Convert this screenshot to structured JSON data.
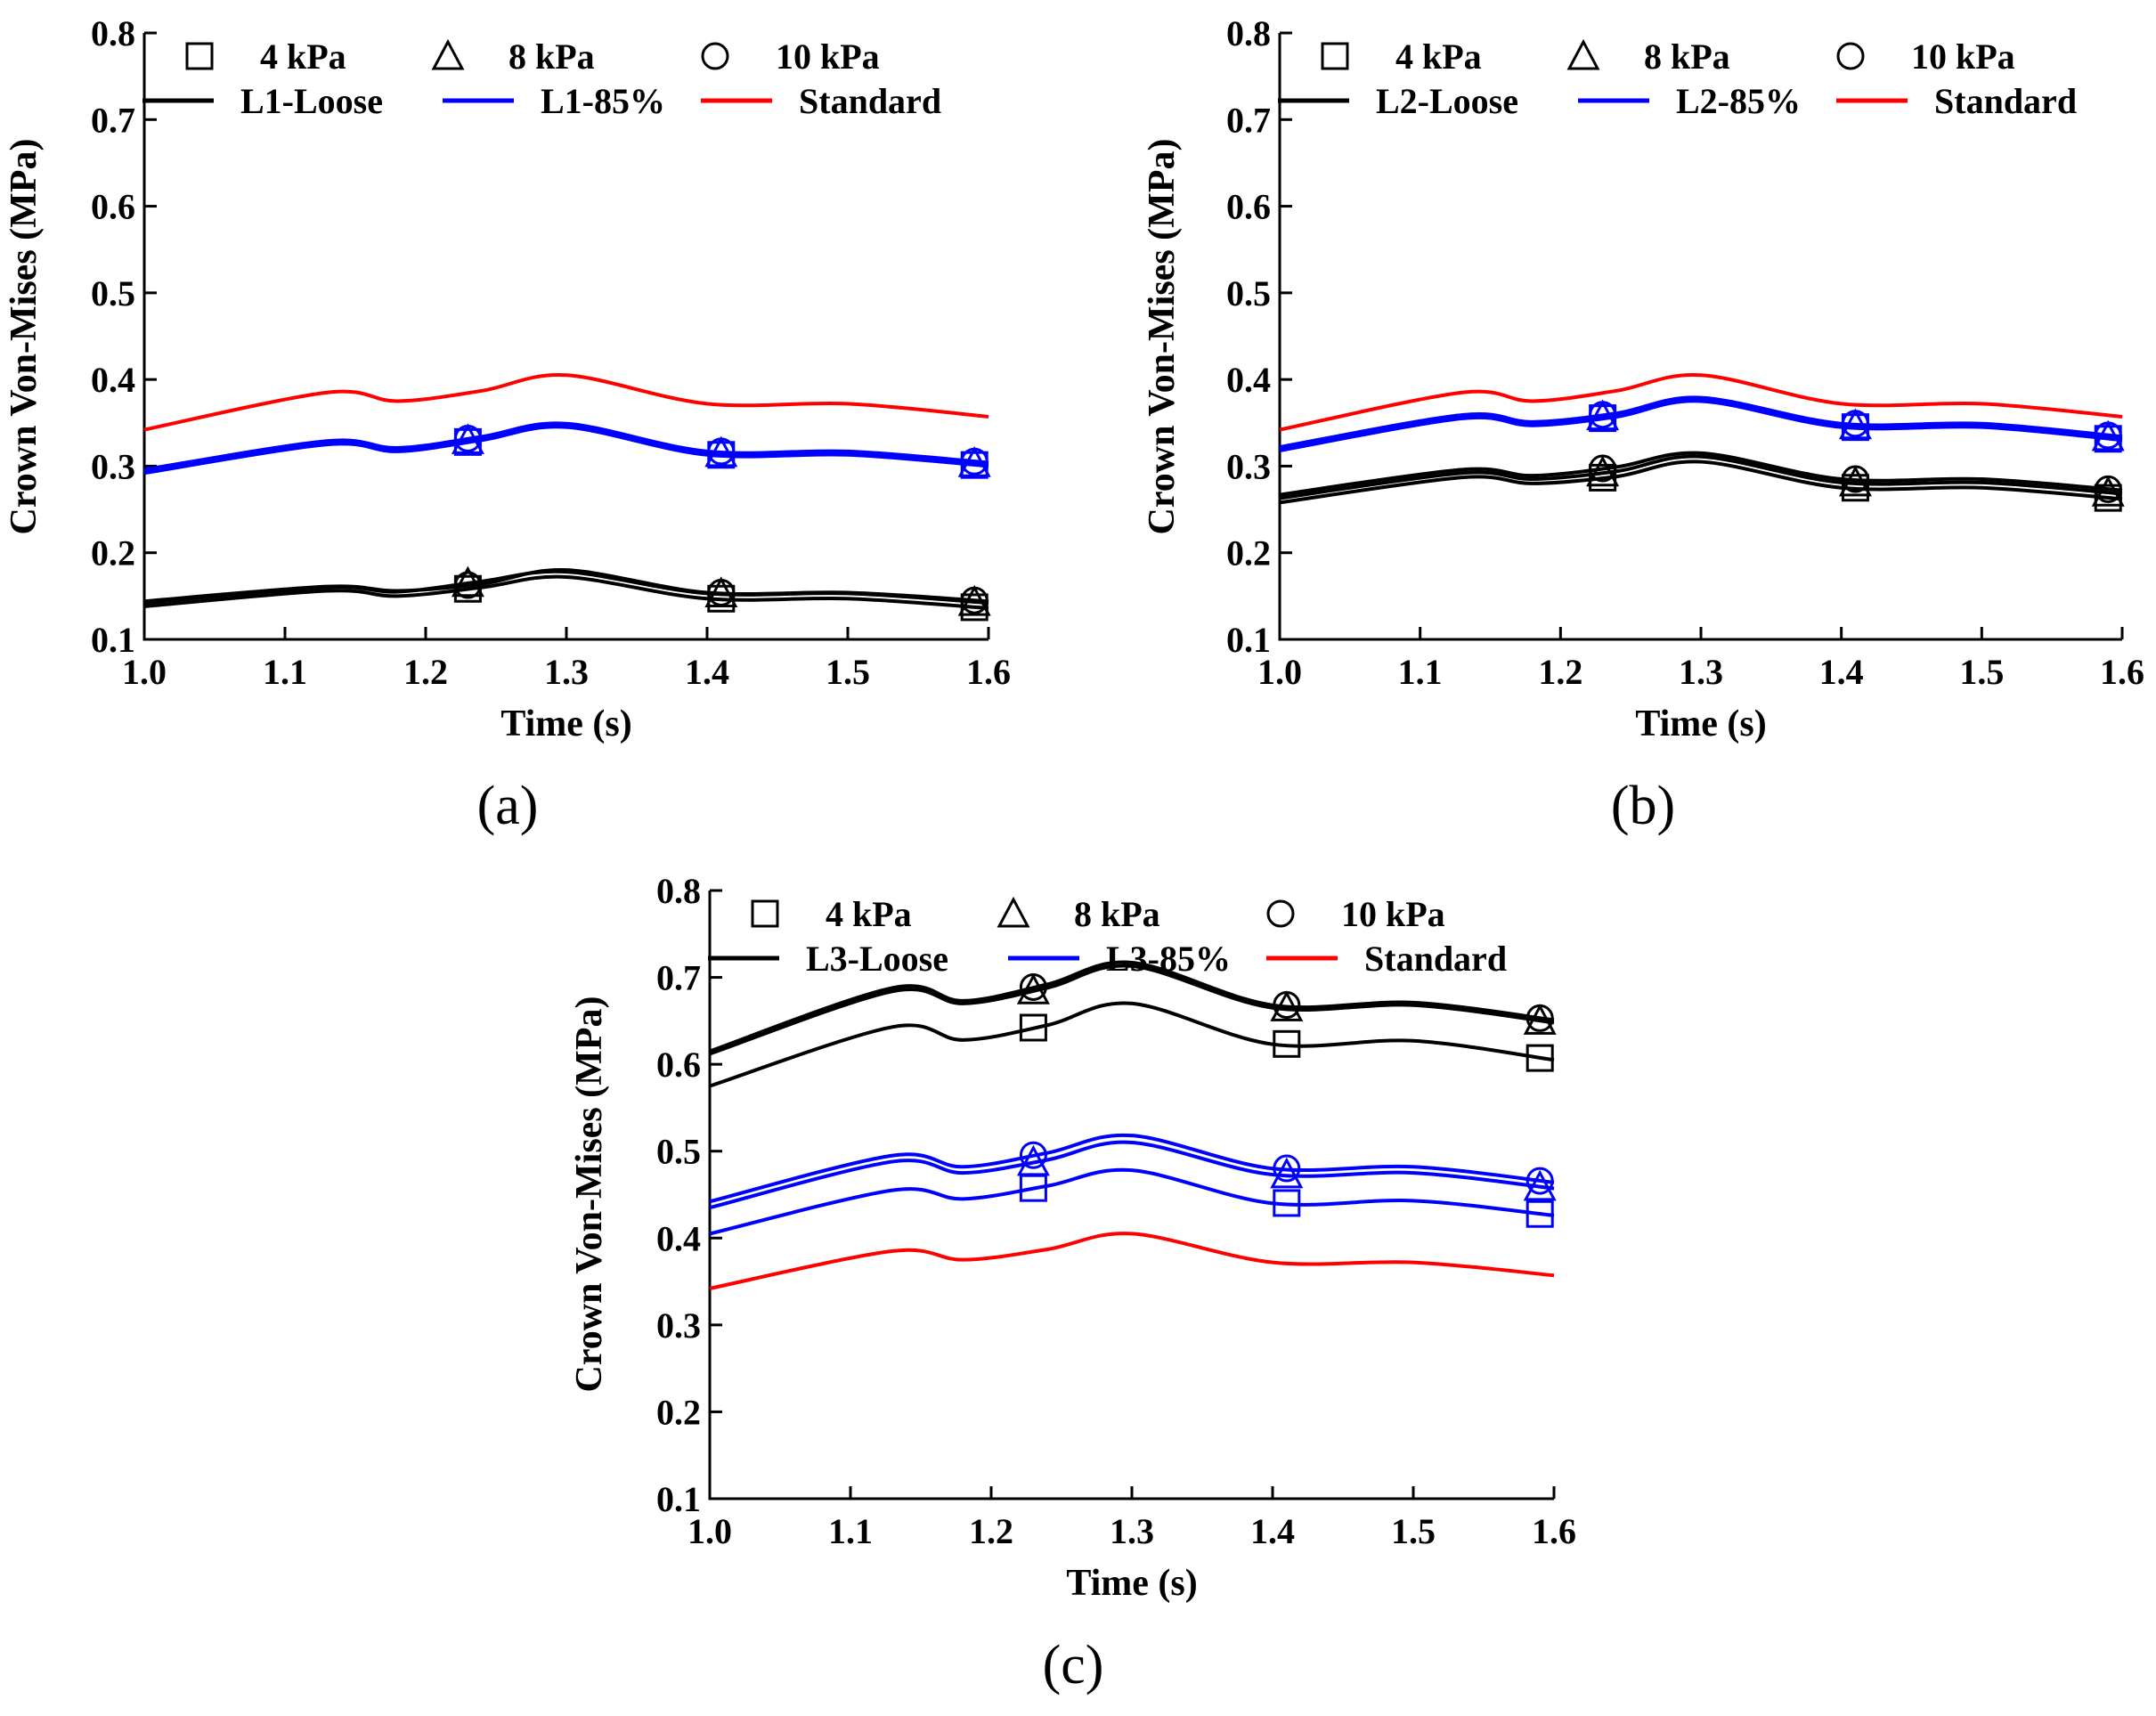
{
  "chart_data": [
    {
      "type": "line",
      "panel_label": "(a)",
      "xlabel": "Time (s)",
      "ylabel": "Crown Von-Mises (MPa)",
      "xlim": [
        1.0,
        1.6
      ],
      "ylim": [
        0.1,
        0.8
      ],
      "xticks": [
        "1.0",
        "1.1",
        "1.2",
        "1.3",
        "1.4",
        "1.5",
        "1.6"
      ],
      "yticks": [
        "0.1",
        "0.2",
        "0.3",
        "0.4",
        "0.5",
        "0.6",
        "0.7",
        "0.8"
      ],
      "legend_markers": [
        {
          "label": "4 kPa",
          "symbol": "square"
        },
        {
          "label": "8 kPa",
          "symbol": "triangle"
        },
        {
          "label": "10 kPa",
          "symbol": "circle"
        }
      ],
      "legend_lines": [
        {
          "label": "L1-Loose",
          "color": "#000000"
        },
        {
          "label": "L1-85%",
          "color": "#0000ff"
        },
        {
          "label": "Standard",
          "color": "#ff0000"
        }
      ],
      "marker_x": [
        1.23,
        1.41,
        1.59
      ],
      "x": [
        1.0,
        1.13,
        1.18,
        1.24,
        1.3,
        1.4,
        1.5,
        1.6
      ],
      "series": [
        {
          "name": "Standard",
          "color": "#ff0000",
          "marker": "none",
          "values": [
            0.342,
            0.385,
            0.375,
            0.387,
            0.405,
            0.372,
            0.372,
            0.357
          ]
        },
        {
          "name": "L1-85% 4 kPa",
          "color": "#0000ff",
          "marker": "square",
          "values": [
            0.292,
            0.325,
            0.317,
            0.33,
            0.345,
            0.313,
            0.313,
            0.3
          ]
        },
        {
          "name": "L1-85% 8 kPa",
          "color": "#0000ff",
          "marker": "triangle",
          "values": [
            0.294,
            0.327,
            0.319,
            0.332,
            0.347,
            0.315,
            0.315,
            0.302
          ]
        },
        {
          "name": "L1-85% 10 kPa",
          "color": "#0000ff",
          "marker": "circle",
          "values": [
            0.296,
            0.329,
            0.321,
            0.334,
            0.349,
            0.317,
            0.317,
            0.304
          ]
        },
        {
          "name": "L1-Loose 4 kPa",
          "color": "#000000",
          "marker": "square",
          "values": [
            0.138,
            0.156,
            0.15,
            0.16,
            0.172,
            0.147,
            0.147,
            0.136
          ]
        },
        {
          "name": "L1-Loose 8 kPa",
          "color": "#000000",
          "marker": "triangle",
          "values": [
            0.142,
            0.16,
            0.155,
            0.167,
            0.178,
            0.153,
            0.153,
            0.142
          ]
        },
        {
          "name": "L1-Loose 10 kPa",
          "color": "#000000",
          "marker": "circle",
          "values": [
            0.144,
            0.161,
            0.156,
            0.164,
            0.18,
            0.154,
            0.154,
            0.144
          ]
        }
      ]
    },
    {
      "type": "line",
      "panel_label": "(b)",
      "xlabel": "Time (s)",
      "ylabel": "Crown Von-Mises (MPa)",
      "xlim": [
        1.0,
        1.6
      ],
      "ylim": [
        0.1,
        0.8
      ],
      "xticks": [
        "1.0",
        "1.1",
        "1.2",
        "1.3",
        "1.4",
        "1.5",
        "1.6"
      ],
      "yticks": [
        "0.1",
        "0.2",
        "0.3",
        "0.4",
        "0.5",
        "0.6",
        "0.7",
        "0.8"
      ],
      "legend_markers": [
        {
          "label": "4 kPa",
          "symbol": "square"
        },
        {
          "label": "8 kPa",
          "symbol": "triangle"
        },
        {
          "label": "10 kPa",
          "symbol": "circle"
        }
      ],
      "legend_lines": [
        {
          "label": "L2-Loose",
          "color": "#000000"
        },
        {
          "label": "L2-85%",
          "color": "#0000ff"
        },
        {
          "label": "Standard",
          "color": "#ff0000"
        }
      ],
      "marker_x": [
        1.23,
        1.41,
        1.59
      ],
      "x": [
        1.0,
        1.13,
        1.18,
        1.24,
        1.3,
        1.4,
        1.5,
        1.6
      ],
      "series": [
        {
          "name": "Standard",
          "color": "#ff0000",
          "marker": "none",
          "values": [
            0.342,
            0.385,
            0.375,
            0.387,
            0.405,
            0.372,
            0.372,
            0.357
          ]
        },
        {
          "name": "L2-85% 4 kPa",
          "color": "#0000ff",
          "marker": "square",
          "values": [
            0.318,
            0.355,
            0.347,
            0.357,
            0.375,
            0.345,
            0.345,
            0.33
          ]
        },
        {
          "name": "L2-85% 8 kPa",
          "color": "#0000ff",
          "marker": "triangle",
          "values": [
            0.32,
            0.357,
            0.349,
            0.359,
            0.377,
            0.347,
            0.347,
            0.332
          ]
        },
        {
          "name": "L2-85% 10 kPa",
          "color": "#0000ff",
          "marker": "circle",
          "values": [
            0.322,
            0.359,
            0.351,
            0.361,
            0.379,
            0.349,
            0.349,
            0.334
          ]
        },
        {
          "name": "L2-Loose 4 kPa",
          "color": "#000000",
          "marker": "square",
          "values": [
            0.258,
            0.287,
            0.28,
            0.288,
            0.305,
            0.275,
            0.275,
            0.262
          ]
        },
        {
          "name": "L2-Loose 8 kPa",
          "color": "#000000",
          "marker": "triangle",
          "values": [
            0.263,
            0.292,
            0.285,
            0.294,
            0.311,
            0.281,
            0.281,
            0.268
          ]
        },
        {
          "name": "L2-Loose 10 kPa",
          "color": "#000000",
          "marker": "circle",
          "values": [
            0.267,
            0.296,
            0.289,
            0.299,
            0.315,
            0.285,
            0.285,
            0.272
          ]
        }
      ]
    },
    {
      "type": "line",
      "panel_label": "(c)",
      "xlabel": "Time (s)",
      "ylabel": "Crown Von-Mises (MPa)",
      "xlim": [
        1.0,
        1.6
      ],
      "ylim": [
        0.1,
        0.8
      ],
      "xticks": [
        "1.0",
        "1.1",
        "1.2",
        "1.3",
        "1.4",
        "1.5",
        "1.6"
      ],
      "yticks": [
        "0.1",
        "0.2",
        "0.3",
        "0.4",
        "0.5",
        "0.6",
        "0.7",
        "0.8"
      ],
      "legend_markers": [
        {
          "label": "4 kPa",
          "symbol": "square"
        },
        {
          "label": "8 kPa",
          "symbol": "triangle"
        },
        {
          "label": "10 kPa",
          "symbol": "circle"
        }
      ],
      "legend_lines": [
        {
          "label": "L3-Loose",
          "color": "#000000"
        },
        {
          "label": "L3-85%",
          "color": "#0000ff"
        },
        {
          "label": "Standard",
          "color": "#ff0000"
        }
      ],
      "marker_x": [
        1.23,
        1.41,
        1.59
      ],
      "x": [
        1.0,
        1.13,
        1.18,
        1.24,
        1.3,
        1.4,
        1.5,
        1.6
      ],
      "series": [
        {
          "name": "Standard",
          "color": "#ff0000",
          "marker": "none",
          "values": [
            0.342,
            0.385,
            0.375,
            0.387,
            0.405,
            0.372,
            0.372,
            0.357
          ]
        },
        {
          "name": "L3-85% 4 kPa",
          "color": "#0000ff",
          "marker": "square",
          "values": [
            0.405,
            0.455,
            0.445,
            0.46,
            0.478,
            0.44,
            0.443,
            0.426
          ]
        },
        {
          "name": "L3-85% 8 kPa",
          "color": "#0000ff",
          "marker": "triangle",
          "values": [
            0.435,
            0.488,
            0.475,
            0.49,
            0.51,
            0.473,
            0.475,
            0.457
          ]
        },
        {
          "name": "L3-85% 10 kPa",
          "color": "#0000ff",
          "marker": "circle",
          "values": [
            0.442,
            0.495,
            0.482,
            0.498,
            0.518,
            0.48,
            0.482,
            0.464
          ]
        },
        {
          "name": "L3-Loose 4 kPa",
          "color": "#000000",
          "marker": "square",
          "values": [
            0.575,
            0.643,
            0.628,
            0.645,
            0.67,
            0.623,
            0.627,
            0.605
          ]
        },
        {
          "name": "L3-Loose 8 kPa",
          "color": "#000000",
          "marker": "triangle",
          "values": [
            0.612,
            0.684,
            0.67,
            0.688,
            0.713,
            0.665,
            0.668,
            0.648
          ]
        },
        {
          "name": "L3-Loose 10 kPa",
          "color": "#000000",
          "marker": "circle",
          "values": [
            0.615,
            0.688,
            0.673,
            0.692,
            0.717,
            0.668,
            0.671,
            0.651
          ]
        }
      ]
    }
  ]
}
